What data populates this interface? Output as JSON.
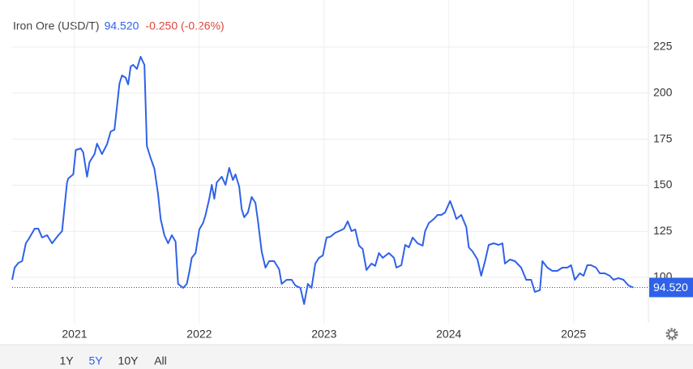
{
  "chart_data": {
    "type": "line",
    "title": "Iron Ore (USD/T)",
    "last_price": "94.520",
    "change": "-0.250 (-0.26%)",
    "price_line": {
      "value": 94.52,
      "label": "94.520"
    },
    "color": "#2f62e8",
    "grid": true,
    "xlim": [
      2020.5,
      2025.6
    ],
    "xticks": [
      2021,
      2022,
      2023,
      2024,
      2025
    ],
    "ylim": [
      75,
      250
    ],
    "yticks": [
      100,
      125,
      150,
      175,
      200,
      225
    ],
    "range_buttons": [
      "1Y",
      "5Y",
      "10Y",
      "All"
    ],
    "selected_range": "5Y",
    "x": [
      2020.5,
      2020.52,
      2020.55,
      2020.58,
      2020.61,
      2020.64,
      2020.68,
      2020.71,
      2020.74,
      2020.78,
      2020.82,
      2020.87,
      2020.9,
      2020.94,
      2020.95,
      2020.99,
      2021.01,
      2021.05,
      2021.07,
      2021.1,
      2021.12,
      2021.16,
      2021.18,
      2021.22,
      2021.26,
      2021.29,
      2021.32,
      2021.36,
      2021.38,
      2021.41,
      2021.43,
      2021.45,
      2021.47,
      2021.5,
      2021.53,
      2021.56,
      2021.58,
      2021.61,
      2021.64,
      2021.67,
      2021.69,
      2021.72,
      2021.75,
      2021.78,
      2021.81,
      2021.83,
      2021.87,
      2021.9,
      2021.92,
      2021.94,
      2021.97,
      2022.0,
      2022.03,
      2022.05,
      2022.08,
      2022.1,
      2022.12,
      2022.14,
      2022.18,
      2022.21,
      2022.24,
      2022.27,
      2022.29,
      2022.32,
      2022.34,
      2022.36,
      2022.39,
      2022.42,
      2022.45,
      2022.47,
      2022.5,
      2022.53,
      2022.56,
      2022.6,
      2022.64,
      2022.66,
      2022.7,
      2022.74,
      2022.77,
      2022.81,
      2022.84,
      2022.87,
      2022.9,
      2022.93,
      2022.96,
      2022.99,
      2023.02,
      2023.05,
      2023.09,
      2023.12,
      2023.16,
      2023.19,
      2023.22,
      2023.25,
      2023.28,
      2023.31,
      2023.34,
      2023.38,
      2023.41,
      2023.44,
      2023.47,
      2023.52,
      2023.56,
      2023.58,
      2023.62,
      2023.65,
      2023.68,
      2023.71,
      2023.75,
      2023.79,
      2023.81,
      2023.84,
      2023.88,
      2023.91,
      2023.94,
      2023.97,
      2024.01,
      2024.04,
      2024.06,
      2024.1,
      2024.14,
      2024.16,
      2024.19,
      2024.23,
      2024.26,
      2024.29,
      2024.32,
      2024.36,
      2024.4,
      2024.43,
      2024.45,
      2024.49,
      2024.53,
      2024.58,
      2024.62,
      2024.66,
      2024.69,
      2024.73,
      2024.75,
      2024.79,
      2024.83,
      2024.87,
      2024.91,
      2024.95,
      2024.98,
      2025.01,
      2025.05,
      2025.08,
      2025.11,
      2025.14,
      2025.18,
      2025.21,
      2025.25,
      2025.29,
      2025.32,
      2025.36,
      2025.4,
      2025.44,
      2025.48
    ],
    "values": [
      98.7,
      105.3,
      107.9,
      108.8,
      118.5,
      121.6,
      126.4,
      126.4,
      121.6,
      122.9,
      118.5,
      122.9,
      125.1,
      151.5,
      153.7,
      155.9,
      169.1,
      170.0,
      167.8,
      154.6,
      162.5,
      166.9,
      172.6,
      166.9,
      172.2,
      179.2,
      180.1,
      205.2,
      209.6,
      208.3,
      204.7,
      214.4,
      215.3,
      213.1,
      219.7,
      215.3,
      171.3,
      164.7,
      159.0,
      144.9,
      131.7,
      122.9,
      118.5,
      122.9,
      119.4,
      96.5,
      94.3,
      96.5,
      103.1,
      110.6,
      113.2,
      126.0,
      129.5,
      133.9,
      142.7,
      150.2,
      142.7,
      151.5,
      154.6,
      150.2,
      159.4,
      152.8,
      155.9,
      149.3,
      137.0,
      132.6,
      135.2,
      143.6,
      140.5,
      130.8,
      114.1,
      105.3,
      108.8,
      108.8,
      104.4,
      96.5,
      98.7,
      98.7,
      95.6,
      94.3,
      85.5,
      96.5,
      94.3,
      107.5,
      110.6,
      111.9,
      121.6,
      122.0,
      124.2,
      125.1,
      126.4,
      130.4,
      125.1,
      126.0,
      117.2,
      115.4,
      104.0,
      107.5,
      106.2,
      113.2,
      110.6,
      113.2,
      110.6,
      105.3,
      106.6,
      117.6,
      116.3,
      121.6,
      118.5,
      117.2,
      125.1,
      129.5,
      131.7,
      133.9,
      133.9,
      135.2,
      141.4,
      136.1,
      131.7,
      133.9,
      127.3,
      116.3,
      114.1,
      109.7,
      100.9,
      108.8,
      117.6,
      118.5,
      117.6,
      118.5,
      107.5,
      109.7,
      108.8,
      105.3,
      98.7,
      98.7,
      92.1,
      93.0,
      108.8,
      105.3,
      103.5,
      103.5,
      105.3,
      105.3,
      106.6,
      98.7,
      102.2,
      100.9,
      106.6,
      106.6,
      105.3,
      102.2,
      102.2,
      100.9,
      98.7,
      99.6,
      98.7,
      95.6,
      94.52
    ]
  }
}
